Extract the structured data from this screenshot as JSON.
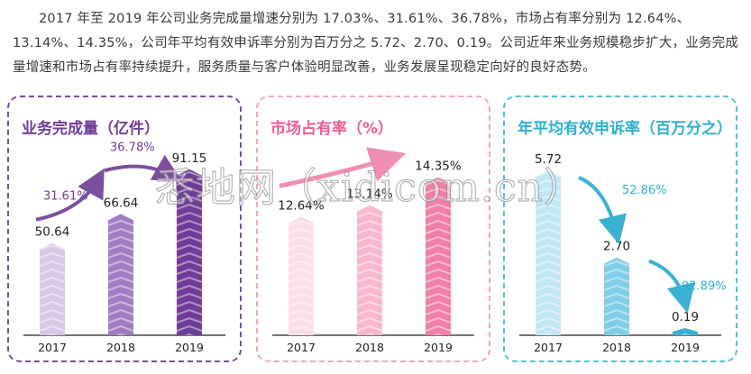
{
  "intro": {
    "text": "2017 年至 2019 年公司业务完成量增速分别为 17.03%、31.61%、36.78%，市场占有率分别为 12.64%、13.14%、14.35%，公司年平均有效申诉率分别为百万分之 5.72、2.70、0.19。公司近年来业务规模稳步扩大，业务完成量增速和市场占有率持续提升，服务质量与客户体验明显改善，业务发展呈现稳定向好的良好态势。"
  },
  "watermark": "悉地网（xidicom.cn）",
  "colors": {
    "purple": "#7b4f9e",
    "pink": "#f08fb4",
    "cyan": "#56c0d8"
  },
  "chart_data": [
    {
      "type": "bar",
      "title": "业务完成量（亿件）",
      "categories": [
        "2017",
        "2018",
        "2019"
      ],
      "values": [
        50.64,
        66.64,
        91.15
      ],
      "value_labels": [
        "50.64",
        "66.64",
        "91.15"
      ],
      "annotations": [
        "31.61%",
        "36.78%"
      ],
      "colors": [
        "#d9c7e6",
        "#a17cc2",
        "#6f3d96"
      ],
      "arrow_color": "#7b4f9e",
      "arrow_dir": "up",
      "ylim": [
        0,
        95
      ]
    },
    {
      "type": "bar",
      "title": "市场占有率（%）",
      "categories": [
        "2017",
        "2018",
        "2019"
      ],
      "values": [
        12.64,
        13.14,
        14.35
      ],
      "value_labels": [
        "12.64%",
        "13.14%",
        "14.35%"
      ],
      "annotations": [],
      "colors": [
        "#fcdde6",
        "#f7b8cd",
        "#ef7fa8"
      ],
      "arrow_color": "#f08fb4",
      "arrow_dir": "up",
      "ylim": [
        7.5,
        15
      ]
    },
    {
      "type": "bar",
      "title": "年平均有效申诉率（百万分之）",
      "categories": [
        "2017",
        "2018",
        "2019"
      ],
      "values": [
        5.72,
        2.7,
        0.19
      ],
      "value_labels": [
        "5.72",
        "2.70",
        "0.19"
      ],
      "annotations": [
        "52.86%",
        "92.89%"
      ],
      "colors": [
        "#c2e8f4",
        "#7ecfe6",
        "#3bb2d2"
      ],
      "arrow_color": "#3bb2d2",
      "arrow_dir": "down",
      "ylim": [
        0,
        6
      ]
    }
  ]
}
